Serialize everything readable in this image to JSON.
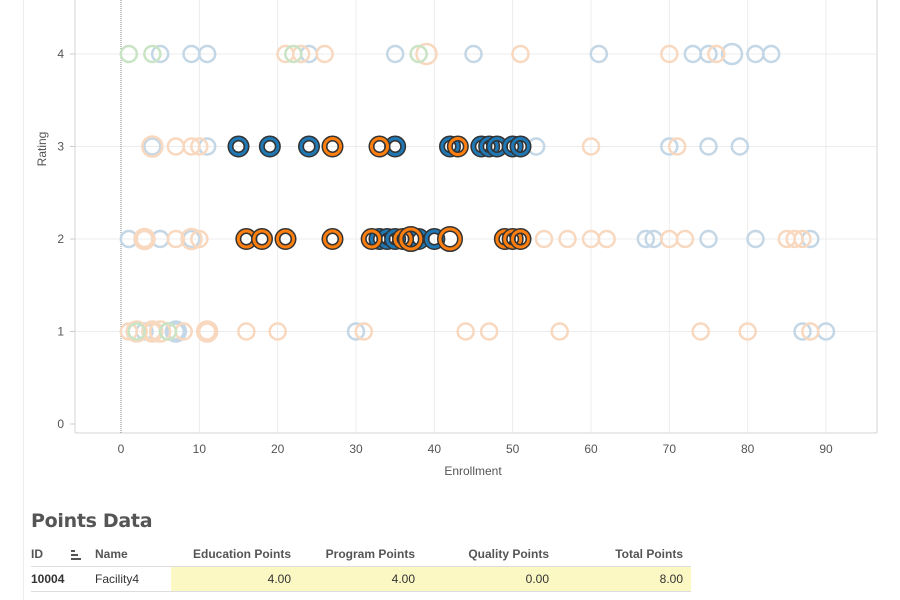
{
  "chart_data": {
    "type": "scatter",
    "title": "",
    "xlabel": "Enrollment",
    "ylabel": "Rating",
    "xlim": [
      -6,
      96
    ],
    "ylim": [
      0,
      4.5
    ],
    "xticks": [
      "0",
      "10",
      "20",
      "30",
      "40",
      "50",
      "60",
      "70",
      "80",
      "90"
    ],
    "yticks": [
      "0",
      "1",
      "2",
      "3",
      "4"
    ],
    "grid": true,
    "legend": "none",
    "reference_line_x": 0,
    "colors": {
      "blue": "#1f77b4",
      "orange": "#ff7f0e",
      "green": "#2ca02c",
      "mark_outline": "#333333"
    },
    "series": [
      {
        "name": "highlighted-blue",
        "color": "blue",
        "highlighted": true,
        "points": [
          [
            15,
            3
          ],
          [
            19,
            3
          ],
          [
            24,
            3
          ],
          [
            35,
            3
          ],
          [
            42,
            3
          ],
          [
            46,
            3
          ],
          [
            47,
            3
          ],
          [
            48,
            3
          ],
          [
            50,
            3
          ],
          [
            51,
            3
          ],
          [
            33,
            2
          ],
          [
            34,
            2
          ],
          [
            35,
            2
          ],
          [
            38,
            2
          ],
          [
            40,
            2
          ]
        ]
      },
      {
        "name": "highlighted-orange",
        "color": "orange",
        "highlighted": true,
        "points": [
          [
            27,
            3
          ],
          [
            33,
            3
          ],
          [
            43,
            3
          ],
          [
            16,
            2
          ],
          [
            18,
            2
          ],
          [
            21,
            2
          ],
          [
            27,
            2
          ],
          [
            32,
            2
          ],
          [
            36,
            2
          ],
          [
            49,
            2
          ],
          [
            50,
            2
          ],
          [
            51,
            2
          ]
        ]
      },
      {
        "name": "highlighted-orange-large",
        "color": "orange",
        "highlighted": true,
        "size": "large",
        "points": [
          [
            37,
            2
          ],
          [
            42,
            2
          ]
        ]
      },
      {
        "name": "faded-blue",
        "color": "blue",
        "highlighted": false,
        "points": [
          [
            5,
            4
          ],
          [
            9,
            4
          ],
          [
            11,
            4
          ],
          [
            24,
            4
          ],
          [
            35,
            4
          ],
          [
            45,
            4
          ],
          [
            61,
            4
          ],
          [
            73,
            4
          ],
          [
            75,
            4
          ],
          [
            81,
            4
          ],
          [
            83,
            4
          ],
          [
            4,
            3
          ],
          [
            11,
            3
          ],
          [
            53,
            3
          ],
          [
            70,
            3
          ],
          [
            75,
            3
          ],
          [
            79,
            3
          ],
          [
            1,
            2
          ],
          [
            5,
            2
          ],
          [
            9,
            2
          ],
          [
            67,
            2
          ],
          [
            68,
            2
          ],
          [
            75,
            2
          ],
          [
            81,
            2
          ],
          [
            88,
            2
          ],
          [
            3,
            1
          ],
          [
            4,
            1
          ],
          [
            7,
            1
          ],
          [
            30,
            1
          ],
          [
            87,
            1
          ],
          [
            90,
            1
          ]
        ]
      },
      {
        "name": "faded-blue-large",
        "color": "blue",
        "highlighted": false,
        "size": "large",
        "points": [
          [
            78,
            4
          ],
          [
            7,
            1
          ]
        ]
      },
      {
        "name": "faded-orange",
        "color": "orange",
        "highlighted": false,
        "points": [
          [
            21,
            4
          ],
          [
            23,
            4
          ],
          [
            26,
            4
          ],
          [
            51,
            4
          ],
          [
            70,
            4
          ],
          [
            76,
            4
          ],
          [
            7,
            3
          ],
          [
            9,
            3
          ],
          [
            10,
            3
          ],
          [
            60,
            3
          ],
          [
            71,
            3
          ],
          [
            3,
            2
          ],
          [
            7,
            2
          ],
          [
            10,
            2
          ],
          [
            54,
            2
          ],
          [
            57,
            2
          ],
          [
            60,
            2
          ],
          [
            62,
            2
          ],
          [
            70,
            2
          ],
          [
            72,
            2
          ],
          [
            85,
            2
          ],
          [
            86,
            2
          ],
          [
            87,
            2
          ],
          [
            1,
            1
          ],
          [
            4,
            1
          ],
          [
            6,
            1
          ],
          [
            8,
            1
          ],
          [
            11,
            1
          ],
          [
            16,
            1
          ],
          [
            20,
            1
          ],
          [
            31,
            1
          ],
          [
            44,
            1
          ],
          [
            47,
            1
          ],
          [
            56,
            1
          ],
          [
            74,
            1
          ],
          [
            80,
            1
          ],
          [
            88,
            1
          ]
        ]
      },
      {
        "name": "faded-orange-large",
        "color": "orange",
        "highlighted": false,
        "size": "large",
        "points": [
          [
            39,
            4
          ],
          [
            4,
            3
          ],
          [
            3,
            2
          ],
          [
            9,
            2
          ],
          [
            2,
            1
          ],
          [
            4,
            1
          ],
          [
            5,
            1
          ],
          [
            11,
            1
          ]
        ]
      },
      {
        "name": "faded-green",
        "color": "green",
        "highlighted": false,
        "points": [
          [
            1,
            4
          ],
          [
            4,
            4
          ],
          [
            22,
            4
          ],
          [
            38,
            4
          ],
          [
            2,
            1
          ],
          [
            6,
            1
          ]
        ]
      }
    ]
  },
  "points_data": {
    "title": "Points Data",
    "columns": [
      "ID",
      "Name",
      "Education Points",
      "Program Points",
      "Quality Points",
      "Total Points"
    ],
    "rows": [
      {
        "id": "10004",
        "name": "Facility4",
        "education": "4.00",
        "program": "4.00",
        "quality": "0.00",
        "total": "8.00"
      }
    ]
  }
}
